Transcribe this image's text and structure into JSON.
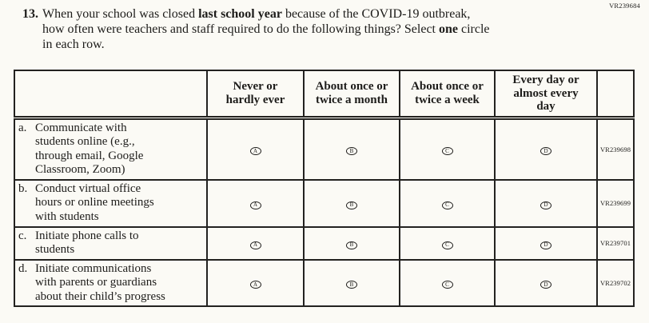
{
  "colors": {
    "background": "#fbfaf5",
    "text": "#1d1c1a",
    "border": "#232220"
  },
  "page": {
    "vr_code": "VR239684"
  },
  "question": {
    "number": "13.",
    "full_text": "When your school was closed last school year because of the COVID-19 outbreak, how often were teachers and staff required to do the following things? Select one circle in each row.",
    "lines": [
      [
        {
          "text": "When your school was closed ",
          "bold": false
        },
        {
          "text": "last school year",
          "bold": true
        },
        {
          "text": " because of the COVID-19 outbreak,",
          "bold": false
        }
      ],
      [
        {
          "text": "how often were teachers and staff required to do the following things? Select ",
          "bold": false
        },
        {
          "text": "one",
          "bold": true
        },
        {
          "text": " circle",
          "bold": false
        }
      ],
      [
        {
          "text": "in each row.",
          "bold": false
        }
      ]
    ]
  },
  "table": {
    "option_letters": [
      "A",
      "B",
      "C",
      "D"
    ],
    "columns": [
      {
        "label": "Never or hardly ever",
        "lines": [
          "Never or",
          "hardly ever"
        ]
      },
      {
        "label": "About once or twice a month",
        "lines": [
          "About once or",
          "twice a month"
        ]
      },
      {
        "label": "About once or twice a week",
        "lines": [
          "About once or",
          "twice a week"
        ]
      },
      {
        "label": "Every day or almost every day",
        "lines": [
          "Every day or",
          "almost every",
          "day"
        ]
      }
    ],
    "rows": [
      {
        "letter": "a.",
        "label": "Communicate with students online (e.g., through email, Google Classroom, Zoom)",
        "label_lines": [
          "Communicate with",
          "students online (e.g.,",
          "through email, Google",
          "Classroom, Zoom)"
        ],
        "vr_code": "VR239698"
      },
      {
        "letter": "b.",
        "label": "Conduct virtual office hours or online meetings with students",
        "label_lines": [
          "Conduct virtual office",
          "hours or online meetings",
          "with students"
        ],
        "vr_code": "VR239699"
      },
      {
        "letter": "c.",
        "label": "Initiate phone calls to students",
        "label_lines": [
          "Initiate phone calls to",
          "students"
        ],
        "vr_code": "VR239701"
      },
      {
        "letter": "d.",
        "label": "Initiate communications with parents or guardians about their child’s progress",
        "label_lines": [
          "Initiate communications",
          "with parents or guardians",
          "about their child’s progress"
        ],
        "vr_code": "VR239702"
      }
    ]
  }
}
